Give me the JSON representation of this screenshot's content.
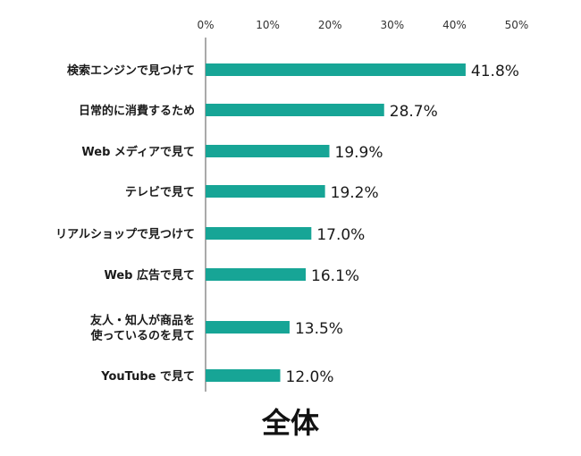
{
  "chart_data": {
    "type": "bar",
    "orientation": "horizontal",
    "categories": [
      [
        "検索エンジンで見つけて"
      ],
      [
        "日常的に消費するため"
      ],
      [
        "Web メディアで見て"
      ],
      [
        "テレビで見て"
      ],
      [
        "リアルショップで見つけて"
      ],
      [
        "Web 広告で見て"
      ],
      [
        "友人・知人が商品を",
        "使っているのを見て"
      ],
      [
        "YouTube で見て"
      ]
    ],
    "values": [
      41.8,
      28.7,
      19.9,
      19.2,
      17.0,
      16.1,
      13.5,
      12.0
    ],
    "value_labels": [
      "41.8%",
      "28.7%",
      "19.9%",
      "19.2%",
      "17.0%",
      "16.1%",
      "13.5%",
      "12.0%"
    ],
    "xticks": [
      "0%",
      "10%",
      "20%",
      "30%",
      "40%",
      "50%"
    ],
    "xlim": [
      0,
      50
    ],
    "bar_color": "#17a596",
    "grid": false,
    "caption": "全体"
  }
}
